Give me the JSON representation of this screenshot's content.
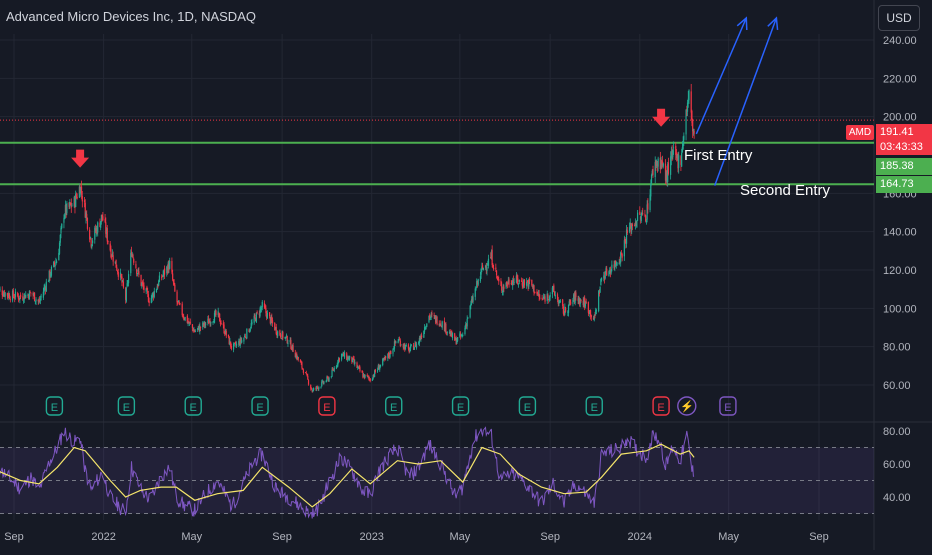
{
  "header": {
    "title": "Advanced Micro Devices Inc, 1D, NASDAQ",
    "currency_button": "USD"
  },
  "annotations": {
    "first_entry": "First Entry",
    "second_entry": "Second Entry"
  },
  "price_scale": {
    "ticker_tag": "AMD",
    "last_price": "191.41",
    "countdown": "03:43:33",
    "level_upper": "185.38",
    "level_lower": "164.73"
  },
  "earnings_markers": [
    {
      "label": "E",
      "date": "2021-10-26",
      "color": "#22ab94"
    },
    {
      "label": "E",
      "date": "2022-02-01",
      "color": "#22ab94"
    },
    {
      "label": "E",
      "date": "2022-05-03",
      "color": "#22ab94"
    },
    {
      "label": "E",
      "date": "2022-08-02",
      "color": "#22ab94"
    },
    {
      "label": "E",
      "date": "2022-11-01",
      "color": "#f23645"
    },
    {
      "label": "E",
      "date": "2023-01-31",
      "color": "#22ab94"
    },
    {
      "label": "E",
      "date": "2023-05-02",
      "color": "#22ab94"
    },
    {
      "label": "E",
      "date": "2023-08-01",
      "color": "#22ab94"
    },
    {
      "label": "E",
      "date": "2023-10-31",
      "color": "#22ab94"
    },
    {
      "label": "E",
      "date": "2024-01-30",
      "color": "#f23645"
    },
    {
      "label": "⚡",
      "date": "2024-03-05",
      "color": "#7e57c2"
    },
    {
      "label": "E",
      "date": "2024-04-30",
      "color": "#7e57c2"
    }
  ],
  "colors": {
    "background": "#161a25",
    "grid": "#232733",
    "up_candle": "#22ab94",
    "down_candle": "#f23645",
    "support_line": "#4caf50",
    "rsi_line": "#7e57c2",
    "rsi_ma": "#f5e56b",
    "arrows": "#2962ff"
  },
  "chart_data": [
    {
      "type": "candlestick",
      "title": "Advanced Micro Devices Inc, 1D, NASDAQ",
      "x_ticks": [
        "Sep",
        "2022",
        "May",
        "Sep",
        "2023",
        "May",
        "Sep",
        "2024",
        "May",
        "Sep"
      ],
      "x_tick_dates": [
        "2021-09-01",
        "2022-01-01",
        "2022-05-01",
        "2022-09-01",
        "2023-01-01",
        "2023-05-01",
        "2023-09-01",
        "2024-01-01",
        "2024-05-01",
        "2024-09-01"
      ],
      "y_ticks": [
        "60.00",
        "80.00",
        "100.00",
        "120.00",
        "140.00",
        "160.00",
        "200.00",
        "220.00",
        "240.00"
      ],
      "ylim": [
        53,
        245
      ],
      "last_price": 191.41,
      "price_path": [
        {
          "date": "2021-08-09",
          "close": 110
        },
        {
          "date": "2021-08-25",
          "close": 107
        },
        {
          "date": "2021-09-10",
          "close": 106
        },
        {
          "date": "2021-09-25",
          "close": 108
        },
        {
          "date": "2021-10-05",
          "close": 103
        },
        {
          "date": "2021-10-20",
          "close": 118
        },
        {
          "date": "2021-10-30",
          "close": 126
        },
        {
          "date": "2021-11-08",
          "close": 150
        },
        {
          "date": "2021-11-22",
          "close": 155
        },
        {
          "date": "2021-11-30",
          "close": 164
        },
        {
          "date": "2021-12-07",
          "close": 151
        },
        {
          "date": "2021-12-15",
          "close": 135
        },
        {
          "date": "2021-12-30",
          "close": 148
        },
        {
          "date": "2022-01-10",
          "close": 131
        },
        {
          "date": "2022-01-25",
          "close": 115
        },
        {
          "date": "2022-01-31",
          "close": 105
        },
        {
          "date": "2022-02-08",
          "close": 130
        },
        {
          "date": "2022-02-20",
          "close": 114
        },
        {
          "date": "2022-03-05",
          "close": 104
        },
        {
          "date": "2022-03-20",
          "close": 116
        },
        {
          "date": "2022-04-01",
          "close": 123
        },
        {
          "date": "2022-04-10",
          "close": 104
        },
        {
          "date": "2022-04-20",
          "close": 96
        },
        {
          "date": "2022-05-05",
          "close": 88
        },
        {
          "date": "2022-05-20",
          "close": 92
        },
        {
          "date": "2022-06-05",
          "close": 97
        },
        {
          "date": "2022-06-25",
          "close": 79
        },
        {
          "date": "2022-07-10",
          "close": 84
        },
        {
          "date": "2022-07-25",
          "close": 94
        },
        {
          "date": "2022-08-05",
          "close": 101
        },
        {
          "date": "2022-08-25",
          "close": 88
        },
        {
          "date": "2022-09-10",
          "close": 83
        },
        {
          "date": "2022-09-30",
          "close": 68
        },
        {
          "date": "2022-10-12",
          "close": 57
        },
        {
          "date": "2022-10-20",
          "close": 59
        },
        {
          "date": "2022-11-05",
          "close": 64
        },
        {
          "date": "2022-11-20",
          "close": 76
        },
        {
          "date": "2022-12-05",
          "close": 73
        },
        {
          "date": "2022-12-20",
          "close": 65
        },
        {
          "date": "2022-12-30",
          "close": 63
        },
        {
          "date": "2023-01-10",
          "close": 69
        },
        {
          "date": "2023-01-25",
          "close": 76
        },
        {
          "date": "2023-02-05",
          "close": 84
        },
        {
          "date": "2023-02-20",
          "close": 78
        },
        {
          "date": "2023-03-05",
          "close": 82
        },
        {
          "date": "2023-03-20",
          "close": 96
        },
        {
          "date": "2023-04-05",
          "close": 93
        },
        {
          "date": "2023-04-25",
          "close": 83
        },
        {
          "date": "2023-05-05",
          "close": 86
        },
        {
          "date": "2023-05-20",
          "close": 107
        },
        {
          "date": "2023-05-31",
          "close": 120
        },
        {
          "date": "2023-06-13",
          "close": 127
        },
        {
          "date": "2023-06-25",
          "close": 110
        },
        {
          "date": "2023-07-10",
          "close": 115
        },
        {
          "date": "2023-07-20",
          "close": 114
        },
        {
          "date": "2023-08-05",
          "close": 113
        },
        {
          "date": "2023-08-20",
          "close": 104
        },
        {
          "date": "2023-09-05",
          "close": 109
        },
        {
          "date": "2023-09-20",
          "close": 98
        },
        {
          "date": "2023-10-05",
          "close": 106
        },
        {
          "date": "2023-10-20",
          "close": 102
        },
        {
          "date": "2023-10-31",
          "close": 94
        },
        {
          "date": "2023-11-10",
          "close": 116
        },
        {
          "date": "2023-11-25",
          "close": 122
        },
        {
          "date": "2023-12-07",
          "close": 128
        },
        {
          "date": "2023-12-15",
          "close": 140
        },
        {
          "date": "2023-12-29",
          "close": 147
        },
        {
          "date": "2024-01-10",
          "close": 149
        },
        {
          "date": "2024-01-20",
          "close": 175
        },
        {
          "date": "2024-01-30",
          "close": 177
        },
        {
          "date": "2024-02-05",
          "close": 168
        },
        {
          "date": "2024-02-15",
          "close": 180
        },
        {
          "date": "2024-02-25",
          "close": 176
        },
        {
          "date": "2024-03-05",
          "close": 205
        },
        {
          "date": "2024-03-08",
          "close": 211
        },
        {
          "date": "2024-03-12",
          "close": 196
        },
        {
          "date": "2024-03-15",
          "close": 191.41
        }
      ],
      "levels": [
        {
          "label": "185.38",
          "value": 185.38
        },
        {
          "label": "164.73",
          "value": 164.73
        }
      ],
      "peak_markers": [
        {
          "date": "2021-11-30",
          "value": 164
        },
        {
          "date": "2024-01-30",
          "value": 185.38
        }
      ],
      "annotations": [
        {
          "text": "First Entry",
          "date": "2024-02-20",
          "value": 184
        },
        {
          "text": "Second Entry",
          "date": "2024-04-15",
          "value": 166
        }
      ],
      "projection_arrows": [
        {
          "from": {
            "date": "2024-03-18",
            "value": 191
          },
          "to": {
            "date": "2024-05-25",
            "value": 252
          }
        },
        {
          "from": {
            "date": "2024-04-12",
            "value": 164
          },
          "to": {
            "date": "2024-07-05",
            "value": 252
          }
        }
      ]
    },
    {
      "type": "line",
      "x_ticks": [
        "Sep",
        "2022",
        "May",
        "Sep",
        "2023",
        "May",
        "Sep",
        "2024",
        "May",
        "Sep"
      ],
      "y_ticks": [
        "40.00",
        "60.00",
        "80.00"
      ],
      "ylim": [
        30,
        85
      ],
      "bands": [
        30,
        50,
        70
      ],
      "series": [
        {
          "role": "oscillator",
          "values": [
            {
              "date": "2021-08-09",
              "v": 58
            },
            {
              "date": "2021-08-25",
              "v": 52
            },
            {
              "date": "2021-09-10",
              "v": 45
            },
            {
              "date": "2021-09-25",
              "v": 52
            },
            {
              "date": "2021-10-05",
              "v": 44
            },
            {
              "date": "2021-10-20",
              "v": 62
            },
            {
              "date": "2021-10-30",
              "v": 70
            },
            {
              "date": "2021-11-08",
              "v": 80
            },
            {
              "date": "2021-11-22",
              "v": 73
            },
            {
              "date": "2021-11-30",
              "v": 76
            },
            {
              "date": "2021-12-07",
              "v": 56
            },
            {
              "date": "2021-12-15",
              "v": 44
            },
            {
              "date": "2021-12-30",
              "v": 55
            },
            {
              "date": "2022-01-10",
              "v": 40
            },
            {
              "date": "2022-01-25",
              "v": 33
            },
            {
              "date": "2022-01-31",
              "v": 31
            },
            {
              "date": "2022-02-08",
              "v": 58
            },
            {
              "date": "2022-02-20",
              "v": 45
            },
            {
              "date": "2022-03-05",
              "v": 38
            },
            {
              "date": "2022-03-20",
              "v": 52
            },
            {
              "date": "2022-04-01",
              "v": 58
            },
            {
              "date": "2022-04-10",
              "v": 40
            },
            {
              "date": "2022-04-20",
              "v": 35
            },
            {
              "date": "2022-05-05",
              "v": 32
            },
            {
              "date": "2022-05-20",
              "v": 42
            },
            {
              "date": "2022-06-05",
              "v": 50
            },
            {
              "date": "2022-06-25",
              "v": 34
            },
            {
              "date": "2022-07-10",
              "v": 48
            },
            {
              "date": "2022-07-25",
              "v": 62
            },
            {
              "date": "2022-08-05",
              "v": 66
            },
            {
              "date": "2022-08-25",
              "v": 44
            },
            {
              "date": "2022-09-10",
              "v": 40
            },
            {
              "date": "2022-09-30",
              "v": 33
            },
            {
              "date": "2022-10-12",
              "v": 29
            },
            {
              "date": "2022-10-20",
              "v": 33
            },
            {
              "date": "2022-11-05",
              "v": 50
            },
            {
              "date": "2022-11-20",
              "v": 64
            },
            {
              "date": "2022-12-05",
              "v": 56
            },
            {
              "date": "2022-12-20",
              "v": 44
            },
            {
              "date": "2022-12-30",
              "v": 41
            },
            {
              "date": "2023-01-10",
              "v": 55
            },
            {
              "date": "2023-01-25",
              "v": 65
            },
            {
              "date": "2023-02-05",
              "v": 70
            },
            {
              "date": "2023-02-20",
              "v": 52
            },
            {
              "date": "2023-03-05",
              "v": 57
            },
            {
              "date": "2023-03-20",
              "v": 72
            },
            {
              "date": "2023-04-05",
              "v": 60
            },
            {
              "date": "2023-04-25",
              "v": 40
            },
            {
              "date": "2023-05-05",
              "v": 46
            },
            {
              "date": "2023-05-20",
              "v": 75
            },
            {
              "date": "2023-05-31",
              "v": 81
            },
            {
              "date": "2023-06-13",
              "v": 77
            },
            {
              "date": "2023-06-25",
              "v": 50
            },
            {
              "date": "2023-07-10",
              "v": 54
            },
            {
              "date": "2023-07-20",
              "v": 52
            },
            {
              "date": "2023-08-05",
              "v": 45
            },
            {
              "date": "2023-08-20",
              "v": 36
            },
            {
              "date": "2023-09-05",
              "v": 48
            },
            {
              "date": "2023-09-20",
              "v": 36
            },
            {
              "date": "2023-10-05",
              "v": 48
            },
            {
              "date": "2023-10-20",
              "v": 42
            },
            {
              "date": "2023-10-31",
              "v": 36
            },
            {
              "date": "2023-11-10",
              "v": 66
            },
            {
              "date": "2023-11-25",
              "v": 68
            },
            {
              "date": "2023-12-07",
              "v": 70
            },
            {
              "date": "2023-12-15",
              "v": 76
            },
            {
              "date": "2023-12-29",
              "v": 68
            },
            {
              "date": "2024-01-10",
              "v": 64
            },
            {
              "date": "2024-01-20",
              "v": 79
            },
            {
              "date": "2024-01-30",
              "v": 72
            },
            {
              "date": "2024-02-05",
              "v": 58
            },
            {
              "date": "2024-02-15",
              "v": 71
            },
            {
              "date": "2024-02-25",
              "v": 62
            },
            {
              "date": "2024-03-05",
              "v": 77
            },
            {
              "date": "2024-03-08",
              "v": 70
            },
            {
              "date": "2024-03-12",
              "v": 56
            },
            {
              "date": "2024-03-15",
              "v": 55
            }
          ]
        },
        {
          "role": "moving-average",
          "values": [
            {
              "date": "2021-08-09",
              "v": 56
            },
            {
              "date": "2021-09-10",
              "v": 50
            },
            {
              "date": "2021-10-05",
              "v": 48
            },
            {
              "date": "2021-10-30",
              "v": 58
            },
            {
              "date": "2021-11-22",
              "v": 70
            },
            {
              "date": "2021-12-07",
              "v": 68
            },
            {
              "date": "2022-01-10",
              "v": 50
            },
            {
              "date": "2022-01-31",
              "v": 40
            },
            {
              "date": "2022-02-20",
              "v": 44
            },
            {
              "date": "2022-03-20",
              "v": 46
            },
            {
              "date": "2022-04-10",
              "v": 46
            },
            {
              "date": "2022-05-05",
              "v": 38
            },
            {
              "date": "2022-06-05",
              "v": 42
            },
            {
              "date": "2022-07-10",
              "v": 44
            },
            {
              "date": "2022-08-05",
              "v": 58
            },
            {
              "date": "2022-09-10",
              "v": 46
            },
            {
              "date": "2022-10-12",
              "v": 34
            },
            {
              "date": "2022-11-05",
              "v": 42
            },
            {
              "date": "2022-12-05",
              "v": 57
            },
            {
              "date": "2022-12-30",
              "v": 48
            },
            {
              "date": "2023-02-05",
              "v": 62
            },
            {
              "date": "2023-03-05",
              "v": 60
            },
            {
              "date": "2023-04-05",
              "v": 62
            },
            {
              "date": "2023-05-05",
              "v": 49
            },
            {
              "date": "2023-05-31",
              "v": 70
            },
            {
              "date": "2023-06-25",
              "v": 66
            },
            {
              "date": "2023-07-20",
              "v": 54
            },
            {
              "date": "2023-08-20",
              "v": 46
            },
            {
              "date": "2023-09-20",
              "v": 42
            },
            {
              "date": "2023-10-20",
              "v": 43
            },
            {
              "date": "2023-11-10",
              "v": 52
            },
            {
              "date": "2023-12-07",
              "v": 66
            },
            {
              "date": "2024-01-10",
              "v": 68
            },
            {
              "date": "2024-01-30",
              "v": 72
            },
            {
              "date": "2024-02-25",
              "v": 66
            },
            {
              "date": "2024-03-08",
              "v": 68
            },
            {
              "date": "2024-03-15",
              "v": 64
            }
          ]
        }
      ]
    }
  ]
}
